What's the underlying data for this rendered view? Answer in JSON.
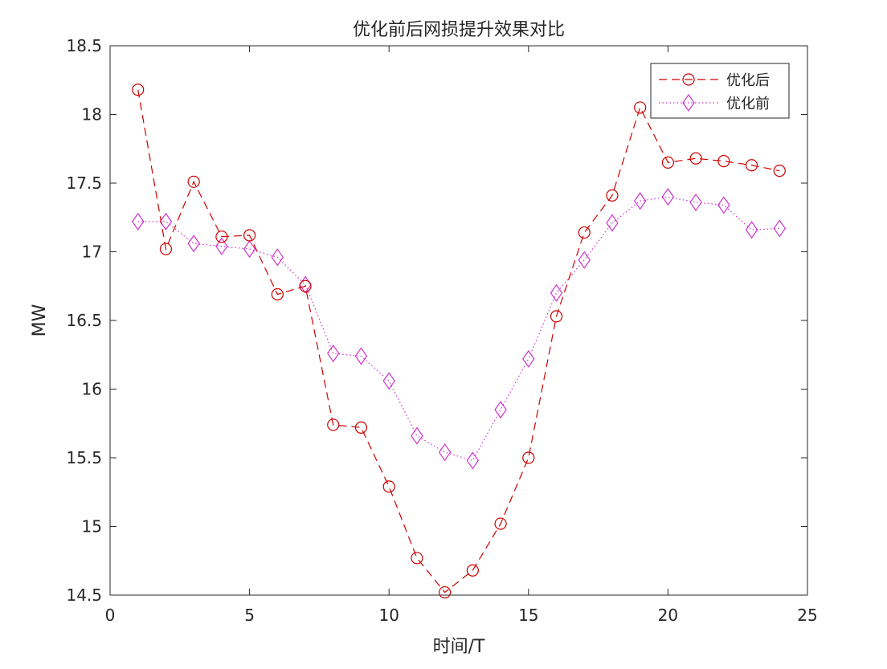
{
  "chart_data": {
    "type": "line",
    "title": "优化前后网损提升效果对比",
    "xlabel": "时间/T",
    "ylabel": "MW",
    "xlim": [
      0,
      25
    ],
    "ylim": [
      14.5,
      18.5
    ],
    "xticks": [
      0,
      5,
      10,
      15,
      20,
      25
    ],
    "yticks": [
      14.5,
      15,
      15.5,
      16,
      16.5,
      17,
      17.5,
      18,
      18.5
    ],
    "x": [
      1,
      2,
      3,
      4,
      5,
      6,
      7,
      8,
      9,
      10,
      11,
      12,
      13,
      14,
      15,
      16,
      17,
      18,
      19,
      20,
      21,
      22,
      23,
      24
    ],
    "series": [
      {
        "name": "优化后",
        "color": "#cc0000",
        "line_style": "dashed",
        "marker": "circle",
        "values": [
          18.18,
          17.02,
          17.51,
          17.11,
          17.12,
          16.69,
          16.75,
          15.74,
          15.72,
          15.29,
          14.77,
          14.52,
          14.68,
          15.02,
          15.5,
          16.53,
          17.14,
          17.41,
          18.05,
          17.65,
          17.68,
          17.66,
          17.63,
          17.59
        ]
      },
      {
        "name": "优化前",
        "color": "#cc33cc",
        "line_style": "dotted",
        "marker": "diamond",
        "values": [
          17.22,
          17.22,
          17.06,
          17.04,
          17.02,
          16.96,
          16.76,
          16.26,
          16.24,
          16.06,
          15.66,
          15.54,
          15.48,
          15.85,
          16.22,
          16.7,
          16.94,
          17.21,
          17.37,
          17.4,
          17.36,
          17.34,
          17.16,
          17.17
        ]
      }
    ],
    "grid": false,
    "legend_position": "top-right"
  }
}
